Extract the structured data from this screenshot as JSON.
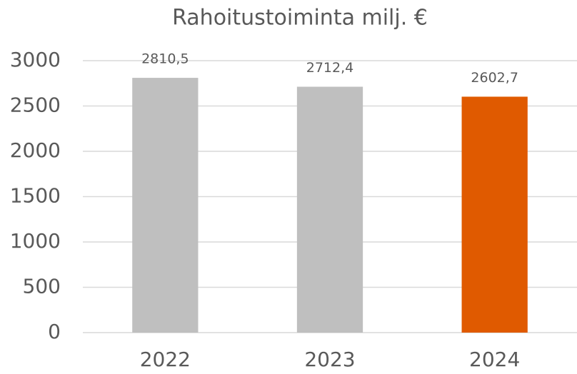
{
  "chart_data": {
    "type": "bar",
    "title": "Rahoitustoiminta milj. €",
    "categories": [
      "2022",
      "2023",
      "2024"
    ],
    "values": [
      2810.5,
      2712.4,
      2602.7
    ],
    "value_labels": [
      "2810,5",
      "2712,4",
      "2602,7"
    ],
    "colors": [
      "#bfbfbf",
      "#bfbfbf",
      "#e05a00"
    ],
    "ylim": [
      0,
      3000
    ],
    "yticks": [
      0,
      500,
      1000,
      1500,
      2000,
      2500,
      3000
    ],
    "grid": true
  }
}
